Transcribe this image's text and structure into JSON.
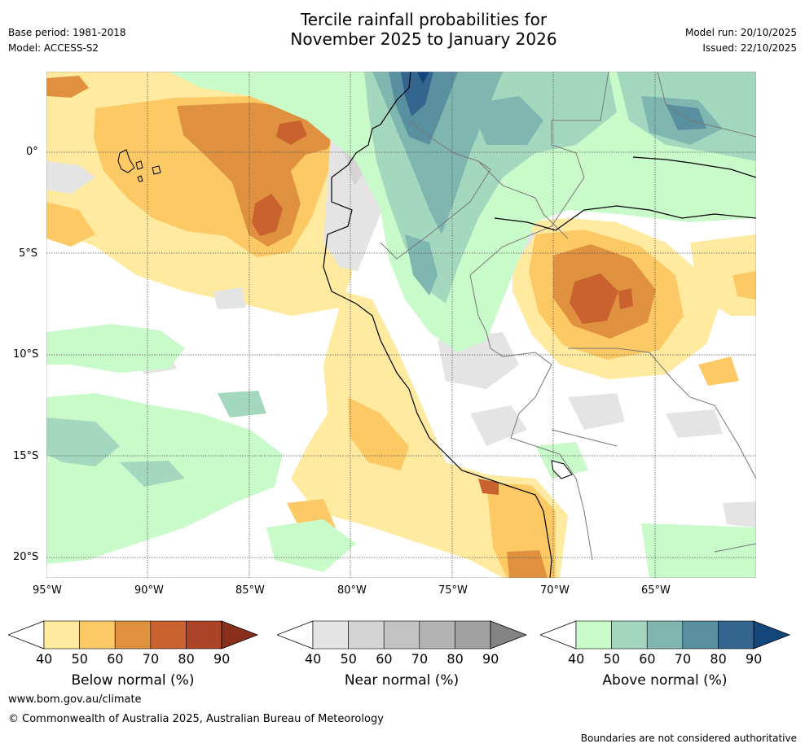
{
  "header": {
    "title_line1": "Tercile rainfall probabilities for",
    "title_line2": "November 2025 to January 2026",
    "base_period": "Base period: 1981-2018",
    "model": "Model: ACCESS-S2",
    "model_run": "Model run: 20/10/2025",
    "issued": "Issued: 22/10/2025"
  },
  "map": {
    "y_ticks": [
      "0°",
      "5°S",
      "10°S",
      "15°S",
      "20°S"
    ],
    "x_ticks": [
      "95°W",
      "90°W",
      "85°W",
      "80°W",
      "75°W",
      "70°W",
      "65°W"
    ]
  },
  "colorbars": [
    {
      "name": "below",
      "title": "Below normal (%)",
      "ticks": [
        "40",
        "50",
        "60",
        "70",
        "80",
        "90"
      ],
      "colors": [
        "#ffeaa0",
        "#fdc964",
        "#e0913f",
        "#c9622f",
        "#ab4427",
        "#8a2f1c"
      ]
    },
    {
      "name": "near",
      "title": "Near normal (%)",
      "ticks": [
        "40",
        "50",
        "60",
        "70",
        "80",
        "90"
      ],
      "colors": [
        "#e4e4e4",
        "#d4d4d4",
        "#c3c3c3",
        "#b3b3b3",
        "#a1a1a1",
        "#838383"
      ]
    },
    {
      "name": "above",
      "title": "Above normal (%)",
      "ticks": [
        "40",
        "50",
        "60",
        "70",
        "80",
        "90"
      ],
      "colors": [
        "#c9fac9",
        "#a4d8be",
        "#7fb6b0",
        "#5990a0",
        "#33658f",
        "#13477c"
      ]
    }
  ],
  "footer": {
    "url": "www.bom.gov.au/climate",
    "copyright": "© Commonwealth of Australia 2025, Australian Bureau of Meteorology",
    "disclaimer": "Boundaries are not considered authoritative"
  }
}
